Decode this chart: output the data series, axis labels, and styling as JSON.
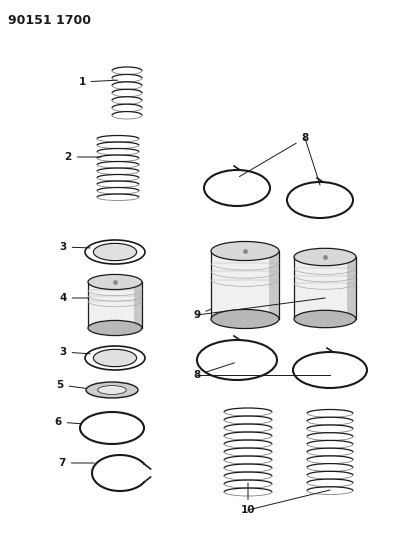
{
  "title": "90151 1700",
  "bg_color": "#ffffff",
  "line_color": "#1a1a1a",
  "fig_width": 3.93,
  "fig_height": 5.33,
  "dpi": 100
}
